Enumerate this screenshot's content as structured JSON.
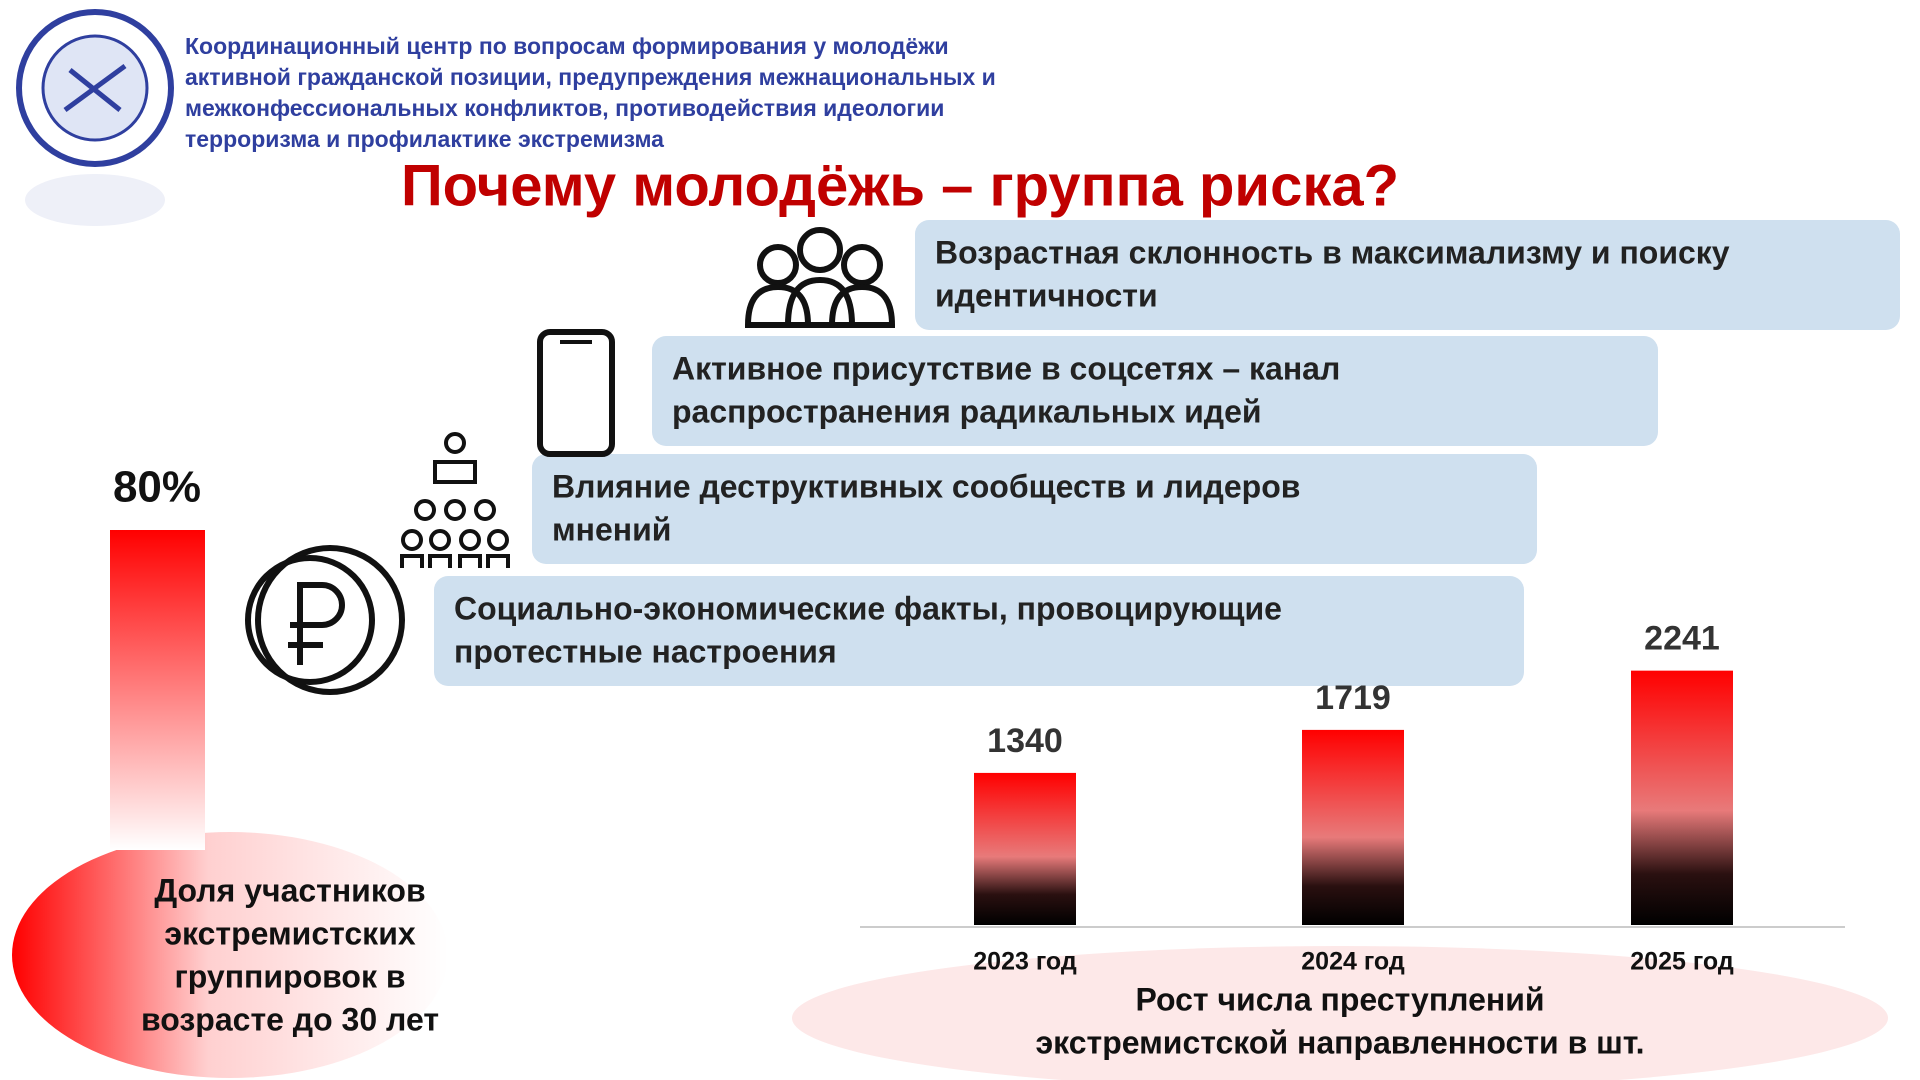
{
  "header": {
    "lines": [
      "Координационный центр по вопросам формирования у молодёжи",
      "активной гражданской позиции, предупреждения межнациональных и",
      "межконфессиональных конфликтов, противодействия идеологии",
      "терроризма и профилактике экстремизма"
    ]
  },
  "title": "Почему молодёжь – группа риска?",
  "factors": [
    {
      "lines": [
        "Возрастная склонность в максимализму и поиску",
        "идентичности"
      ]
    },
    {
      "lines": [
        "Активное присутствие в соцсетях – канал",
        "распространения радикальных идей"
      ]
    },
    {
      "lines": [
        "Влияние деструктивных сообществ и лидеров",
        "мнений"
      ]
    },
    {
      "lines": [
        "Социально-экономические факты, провоцирующие",
        "протестные настроения"
      ]
    }
  ],
  "share": {
    "value": 80,
    "label": "80%",
    "caption": [
      "Доля участников",
      "экстремистских",
      "группировок в",
      "возрасте до 30 лет"
    ]
  },
  "chart_data": {
    "type": "bar",
    "categories": [
      "2023 год",
      "2024 год",
      "2025 год"
    ],
    "values": [
      1340,
      1719,
      2241
    ],
    "caption": [
      "Рост числа преступлений",
      "экстремистской направленности в шт."
    ]
  }
}
